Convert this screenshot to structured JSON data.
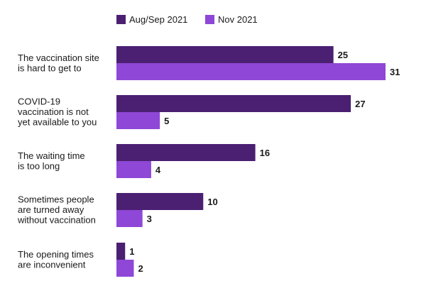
{
  "chart_data": {
    "type": "bar",
    "orientation": "horizontal",
    "categories": [
      [
        "The vaccination site",
        "is hard to get to"
      ],
      [
        "COVID-19",
        "vaccination is not",
        "yet available to you"
      ],
      [
        "The waiting time",
        "is too long"
      ],
      [
        "Sometimes people",
        "are turned away",
        "without vaccination"
      ],
      [
        "The opening times",
        "are inconvenient"
      ]
    ],
    "series": [
      {
        "name": "Aug/Sep 2021",
        "color": "#4b1f72",
        "values": [
          25,
          27,
          16,
          10,
          1
        ]
      },
      {
        "name": "Nov 2021",
        "color": "#8e47d6",
        "values": [
          31,
          5,
          4,
          3,
          2
        ]
      }
    ],
    "xlim": [
      0,
      31
    ],
    "grid": false,
    "legend": "top",
    "data_labels": true,
    "title": "",
    "xlabel": "",
    "ylabel": ""
  }
}
